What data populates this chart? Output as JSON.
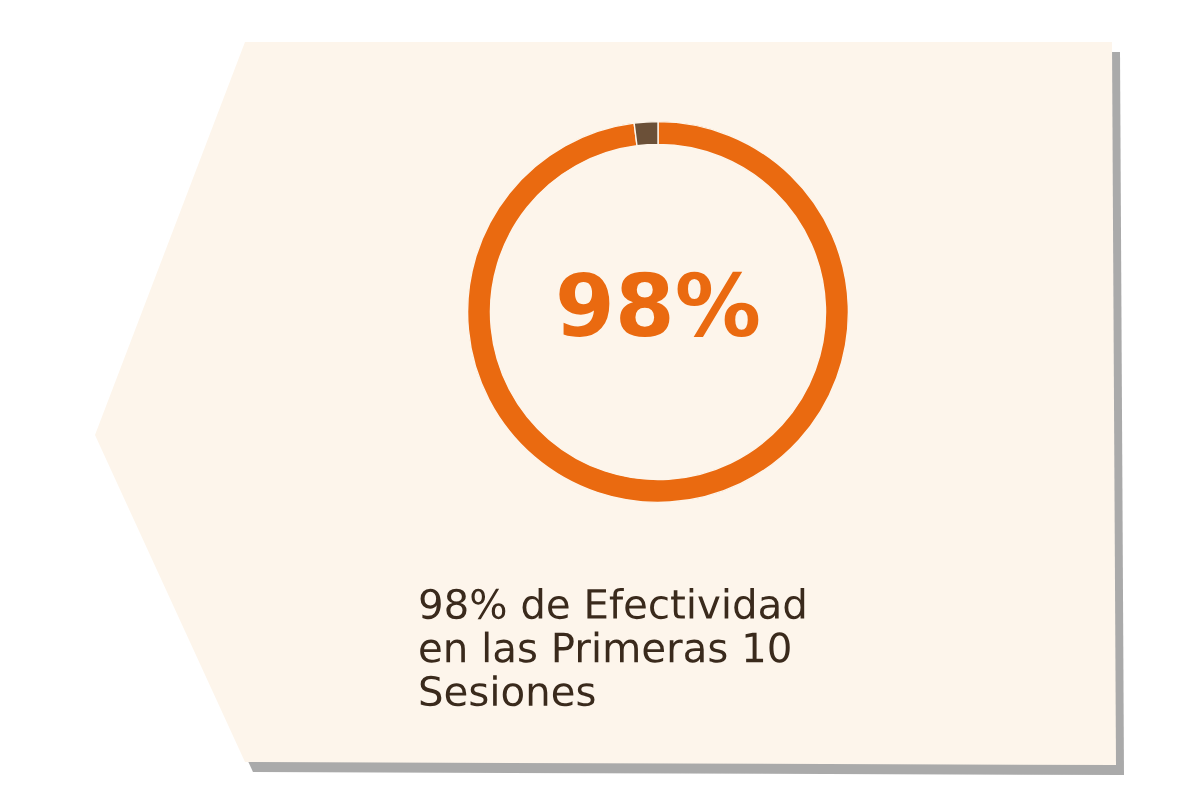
{
  "chart_data": {
    "type": "donut",
    "categories": [
      null,
      null
    ],
    "values": [
      98,
      2
    ],
    "colors": [
      "#ea6a10",
      "#6b5038"
    ],
    "annotations": [
      "98%",
      "98% de Efectividad\nen las Primeras 10\nSesiones"
    ]
  }
}
